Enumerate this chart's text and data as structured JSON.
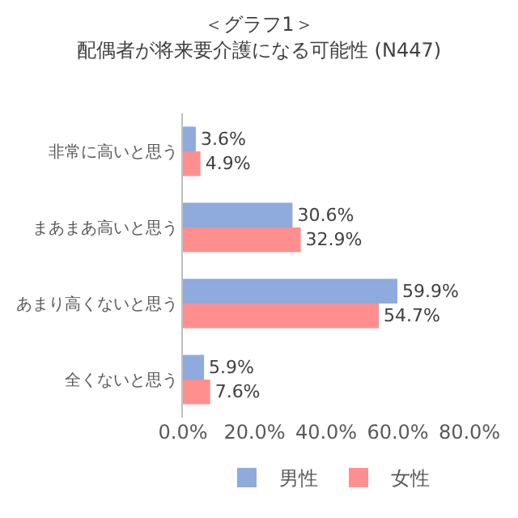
{
  "chart_data": {
    "type": "bar",
    "orientation": "horizontal",
    "title": "＜グラフ1＞",
    "subtitle": "配偶者が将来要介護になる可能性 (N447)",
    "categories": [
      "非常に高いと思う",
      "まあまあ高いと思う",
      "あまり高くないと思う",
      "全くないと思う"
    ],
    "series": [
      {
        "name": "男性",
        "color": "#8faadc",
        "values": [
          3.6,
          30.6,
          59.9,
          5.9
        ],
        "value_labels": [
          "3.6%",
          "30.6%",
          "59.9%",
          "5.9%"
        ]
      },
      {
        "name": "女性",
        "color": "#ff8f8f",
        "values": [
          4.9,
          32.9,
          54.7,
          7.6
        ],
        "value_labels": [
          "4.9%",
          "32.9%",
          "54.7%",
          "7.6%"
        ]
      }
    ],
    "xlim": [
      0,
      80
    ],
    "xticks": [
      {
        "value": 0,
        "label": "0.0%"
      },
      {
        "value": 20,
        "label": "20.0%"
      },
      {
        "value": 40,
        "label": "40.0%"
      },
      {
        "value": 60,
        "label": "60.0%"
      },
      {
        "value": 80,
        "label": "80.0%"
      }
    ],
    "grid": false,
    "legend": "bottom"
  }
}
